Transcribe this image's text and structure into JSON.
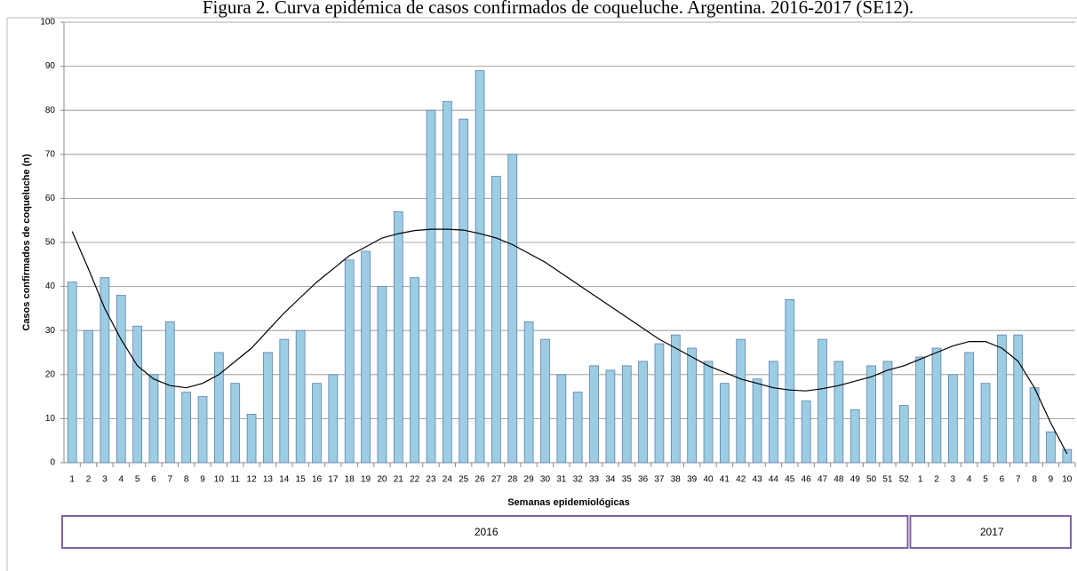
{
  "chart_data": {
    "type": "bar",
    "title": "Figura 2. Curva epidémica de casos confirmados de coqueluche. Argentina. 2016-2017 (SE12).",
    "y_label": "Casos confirmados de coqueluche (n)",
    "x_label": "Semanas epidemiológicas",
    "categories": [
      "1",
      "2",
      "3",
      "4",
      "5",
      "6",
      "7",
      "8",
      "9",
      "10",
      "11",
      "12",
      "13",
      "14",
      "15",
      "16",
      "17",
      "18",
      "19",
      "20",
      "21",
      "22",
      "23",
      "24",
      "25",
      "26",
      "27",
      "28",
      "29",
      "30",
      "31",
      "32",
      "33",
      "34",
      "35",
      "36",
      "37",
      "38",
      "39",
      "40",
      "41",
      "42",
      "43",
      "44",
      "45",
      "46",
      "47",
      "48",
      "49",
      "50",
      "51",
      "52",
      "1",
      "2",
      "3",
      "4",
      "5",
      "6",
      "7",
      "8",
      "9",
      "10"
    ],
    "values": [
      41,
      30,
      42,
      38,
      31,
      20,
      32,
      16,
      15,
      25,
      18,
      11,
      25,
      28,
      30,
      18,
      20,
      46,
      48,
      40,
      57,
      42,
      80,
      82,
      78,
      89,
      65,
      70,
      32,
      28,
      20,
      16,
      22,
      21,
      22,
      23,
      27,
      29,
      26,
      23,
      18,
      28,
      19,
      23,
      37,
      14,
      28,
      23,
      12,
      22,
      23,
      13,
      24,
      26,
      20,
      25,
      18,
      29,
      29,
      17,
      7,
      3
    ],
    "trend": [
      52.5,
      44,
      35,
      28,
      22,
      19,
      17.5,
      17,
      18,
      20,
      23,
      26,
      30,
      34,
      37.5,
      41,
      44,
      47,
      49,
      51,
      52,
      52.7,
      53,
      53,
      52.8,
      52,
      51,
      49.5,
      47.5,
      45.5,
      43,
      40.5,
      38,
      35.5,
      33,
      30.5,
      28,
      26,
      24,
      22,
      20.5,
      19,
      18,
      17,
      16.5,
      16.3,
      16.8,
      17.5,
      18.5,
      19.5,
      21,
      22,
      23.5,
      25,
      26.5,
      27.5,
      27.5,
      26,
      23,
      17,
      9,
      2
    ],
    "groups": [
      {
        "label": "2016",
        "span": 52
      },
      {
        "label": "2017",
        "span": 10
      }
    ],
    "color": "#9dcde3",
    "edge_color": "#5b7fae",
    "trend_color": "#000000",
    "ylim": [
      0,
      100
    ],
    "yticks": [
      0,
      10,
      20,
      30,
      40,
      50,
      60,
      70,
      80,
      90,
      100
    ],
    "grid": true
  }
}
